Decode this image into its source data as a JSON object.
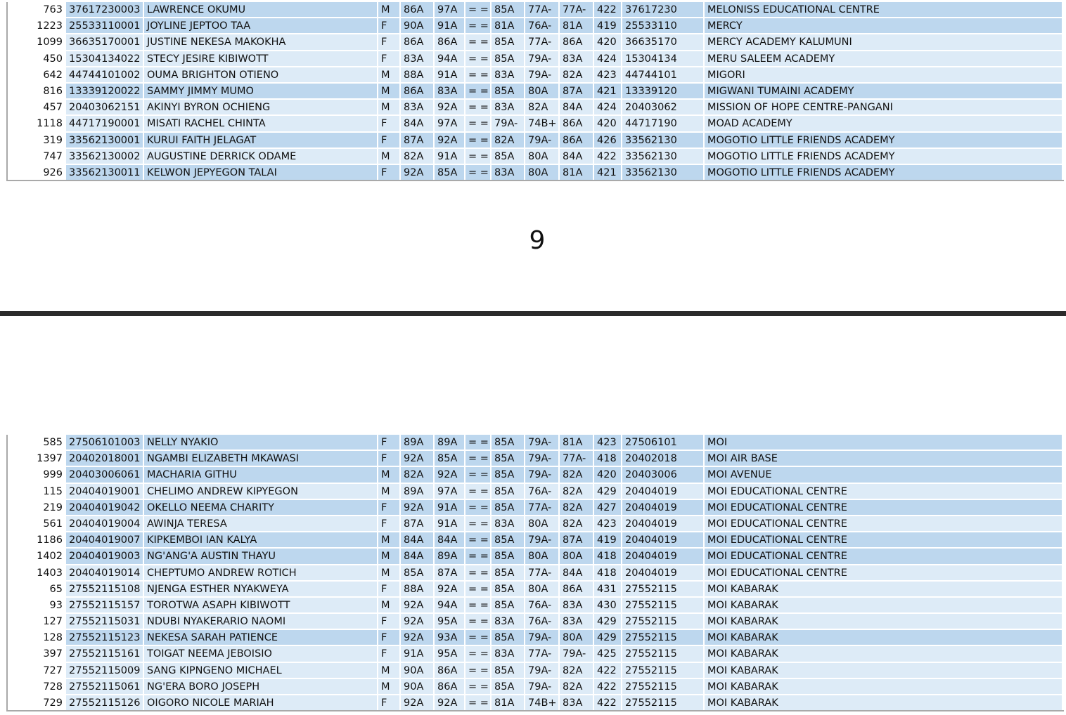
{
  "page_number": "9",
  "colors": {
    "row_dark": "#bdd7ee",
    "row_light": "#ddebf7",
    "page_break": "#2b2b2b"
  },
  "top_rows": [
    [
      "763",
      "37617230003",
      "LAWRENCE  OKUMU",
      "M",
      "86A",
      "97A",
      "= =",
      "85A",
      "77A-",
      "77A-",
      "422",
      "37617230",
      "MELONISS EDUCATIONAL CENTRE",
      "dk"
    ],
    [
      "1223",
      "25533110001",
      "JOYLINE  JEPTOO  TAA",
      "F",
      "90A",
      "91A",
      "= =",
      "81A",
      "76A-",
      "81A",
      "419",
      "25533110",
      "MERCY",
      "dk"
    ],
    [
      "1099",
      "36635170001",
      "JUSTINE  NEKESA MAKOKHA",
      "F",
      "86A",
      "86A",
      "= =",
      "85A",
      "77A-",
      "86A",
      "420",
      "36635170",
      "MERCY  ACADEMY KALUMUNI",
      "lt"
    ],
    [
      "450",
      "15304134022",
      "STECY JESIRE KIBIWOTT",
      "F",
      "83A",
      "94A",
      "= =",
      "85A",
      "79A-",
      "83A",
      "424",
      "15304134",
      "MERU SALEEM ACADEMY",
      "lt"
    ],
    [
      "642",
      "44744101002",
      "OUMA BRIGHTON OTIENO",
      "M",
      "88A",
      "91A",
      "= =",
      "83A",
      "79A-",
      "82A",
      "423",
      "44744101",
      "MIGORI",
      "lt"
    ],
    [
      "816",
      "13339120022",
      "SAMMY JIMMY MUMO",
      "M",
      "86A",
      "83A",
      "= =",
      "85A",
      "80A",
      "87A",
      "421",
      "13339120",
      "MIGWANI TUMAINI ACADEMY",
      "dk"
    ],
    [
      "457",
      "20403062151",
      "AKINYI BYRON OCHIENG",
      "M",
      "83A",
      "92A",
      "= =",
      "83A",
      "82A",
      "84A",
      "424",
      "20403062",
      "MISSION OF HOPE CENTRE-PANGANI",
      "lt"
    ],
    [
      "1118",
      "44717190001",
      "MISATI RACHEL CHINTA",
      "F",
      "84A",
      "97A",
      "= =",
      "79A-",
      "74B+",
      "86A",
      "420",
      "44717190",
      "MOAD ACADEMY",
      "lt"
    ],
    [
      "319",
      "33562130001",
      "KURUI FAITH JELAGAT",
      "F",
      "87A",
      "92A",
      "= =",
      "82A",
      "79A-",
      "86A",
      "426",
      "33562130",
      "MOGOTIO LITTLE FRIENDS ACADEMY",
      "dk"
    ],
    [
      "747",
      "33562130002",
      "AUGUSTINE DERRICK ODAME",
      "M",
      "82A",
      "91A",
      "= =",
      "85A",
      "80A",
      "84A",
      "422",
      "33562130",
      "MOGOTIO LITTLE FRIENDS ACADEMY",
      "lt"
    ],
    [
      "926",
      "33562130011",
      "KELWON JEPYEGON TALAI",
      "F",
      "92A",
      "85A",
      "= =",
      "83A",
      "80A",
      "81A",
      "421",
      "33562130",
      "MOGOTIO LITTLE FRIENDS ACADEMY",
      "dk"
    ]
  ],
  "bottom_rows": [
    [
      "585",
      "27506101003",
      "NELLY NYAKIO",
      "F",
      "89A",
      "89A",
      "= =",
      "85A",
      "79A-",
      "81A",
      "423",
      "27506101",
      "MOI",
      "dk"
    ],
    [
      "1397",
      "20402018001",
      "NGAMBI ELIZABETH MKAWASI",
      "F",
      "92A",
      "85A",
      "= =",
      "85A",
      "79A-",
      "77A-",
      "418",
      "20402018",
      "MOI AIR BASE",
      "dk"
    ],
    [
      "999",
      "20403006061",
      "MACHARIA GITHU",
      "M",
      "82A",
      "92A",
      "= =",
      "85A",
      "79A-",
      "82A",
      "420",
      "20403006",
      "MOI AVENUE",
      "dk"
    ],
    [
      "115",
      "20404019001",
      "CHELIMO ANDREW KIPYEGON",
      "M",
      "89A",
      "97A",
      "= =",
      "85A",
      "76A-",
      "82A",
      "429",
      "20404019",
      "MOI EDUCATIONAL CENTRE",
      "lt"
    ],
    [
      "219",
      "20404019042",
      "OKELLO NEEMA CHARITY",
      "F",
      "92A",
      "91A",
      "= =",
      "85A",
      "77A-",
      "82A",
      "427",
      "20404019",
      "MOI EDUCATIONAL CENTRE",
      "dk"
    ],
    [
      "561",
      "20404019004",
      "AWINJA TERESA",
      "F",
      "87A",
      "91A",
      "= =",
      "83A",
      "80A",
      "82A",
      "423",
      "20404019",
      "MOI EDUCATIONAL CENTRE",
      "lt"
    ],
    [
      "1186",
      "20404019007",
      "KIPKEMBOI IAN KALYA",
      "M",
      "84A",
      "84A",
      "= =",
      "85A",
      "79A-",
      "87A",
      "419",
      "20404019",
      "MOI EDUCATIONAL CENTRE",
      "dk"
    ],
    [
      "1402",
      "20404019003",
      "NG'ANG'A AUSTIN THAYU",
      "M",
      "84A",
      "89A",
      "= =",
      "85A",
      "80A",
      "80A",
      "418",
      "20404019",
      "MOI EDUCATIONAL CENTRE",
      "dk"
    ],
    [
      "1403",
      "20404019014",
      "CHEPTUMO ANDREW ROTICH",
      "M",
      "85A",
      "87A",
      "= =",
      "85A",
      "77A-",
      "84A",
      "418",
      "20404019",
      "MOI EDUCATIONAL CENTRE",
      "lt"
    ],
    [
      "65",
      "27552115108",
      "NJENGA ESTHER NYAKWEYA",
      "F",
      "88A",
      "92A",
      "= =",
      "85A",
      "80A",
      "86A",
      "431",
      "27552115",
      "MOI KABARAK",
      "lt"
    ],
    [
      "93",
      "27552115157",
      "TOROTWA ASAPH KIBIWOTT",
      "M",
      "92A",
      "94A",
      "= =",
      "85A",
      "76A-",
      "83A",
      "430",
      "27552115",
      "MOI KABARAK",
      "lt"
    ],
    [
      "127",
      "27552115031",
      "NDUBI NYAKERARIO NAOMI",
      "F",
      "92A",
      "95A",
      "= =",
      "83A",
      "76A-",
      "83A",
      "429",
      "27552115",
      "MOI KABARAK",
      "lt"
    ],
    [
      "128",
      "27552115123",
      "NEKESA SARAH PATIENCE",
      "F",
      "92A",
      "93A",
      "= =",
      "85A",
      "79A-",
      "80A",
      "429",
      "27552115",
      "MOI KABARAK",
      "dk"
    ],
    [
      "397",
      "27552115161",
      "TOIGAT NEEMA JEBOISIO",
      "F",
      "91A",
      "95A",
      "= =",
      "83A",
      "77A-",
      "79A-",
      "425",
      "27552115",
      "MOI KABARAK",
      "lt"
    ],
    [
      "727",
      "27552115009",
      "SANG KIPNGENO MICHAEL",
      "M",
      "90A",
      "86A",
      "= =",
      "85A",
      "79A-",
      "82A",
      "422",
      "27552115",
      "MOI KABARAK",
      "lt"
    ],
    [
      "728",
      "27552115061",
      "NG'ERA BORO JOSEPH",
      "M",
      "90A",
      "86A",
      "= =",
      "85A",
      "79A-",
      "82A",
      "422",
      "27552115",
      "MOI KABARAK",
      "lt"
    ],
    [
      "729",
      "27552115126",
      "OIGORO NICOLE MARIAH",
      "F",
      "92A",
      "92A",
      "= =",
      "81A",
      "74B+",
      "83A",
      "422",
      "27552115",
      "MOI KABARAK",
      "lt"
    ]
  ]
}
